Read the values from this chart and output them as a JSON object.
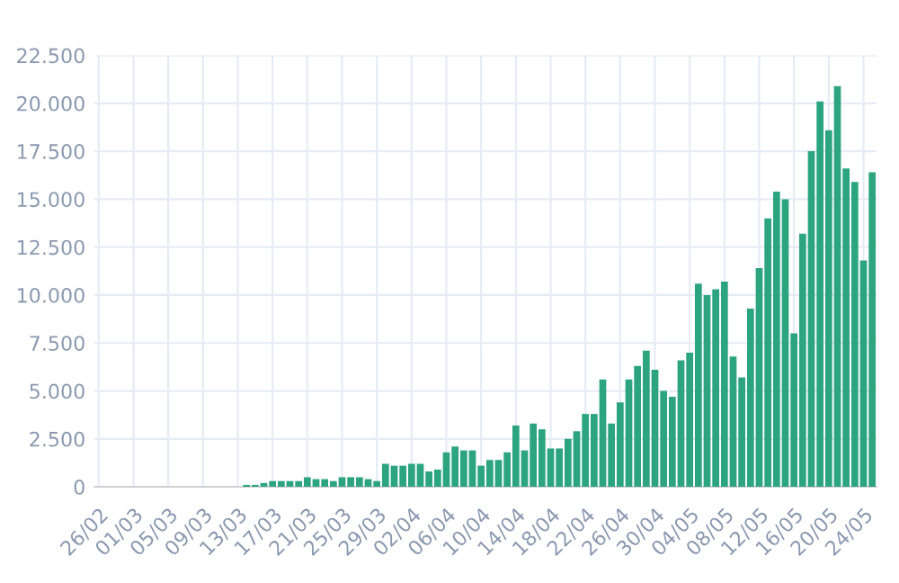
{
  "chart_data": {
    "type": "bar",
    "categories": [
      "26/02",
      null,
      null,
      null,
      "01/03",
      null,
      null,
      null,
      "05/03",
      null,
      null,
      null,
      "09/03",
      null,
      null,
      null,
      "13/03",
      null,
      null,
      null,
      "17/03",
      null,
      null,
      null,
      "21/03",
      null,
      null,
      null,
      "25/03",
      null,
      null,
      null,
      "29/03",
      null,
      null,
      null,
      "02/04",
      null,
      null,
      null,
      "06/04",
      null,
      null,
      null,
      "10/04",
      null,
      null,
      null,
      "14/04",
      null,
      null,
      null,
      "18/04",
      null,
      null,
      null,
      "22/04",
      null,
      null,
      null,
      "26/04",
      null,
      null,
      null,
      "30/04",
      null,
      null,
      null,
      "04/05",
      null,
      null,
      null,
      "08/05",
      null,
      null,
      null,
      "12/05",
      null,
      null,
      null,
      "16/05",
      null,
      null,
      null,
      "20/05",
      null,
      null,
      null,
      "24/05",
      null
    ],
    "values": [
      0,
      0,
      0,
      0,
      0,
      0,
      0,
      0,
      0,
      0,
      0,
      0,
      0,
      0,
      0,
      0,
      0,
      100,
      100,
      200,
      300,
      300,
      300,
      300,
      500,
      400,
      400,
      300,
      500,
      500,
      500,
      400,
      300,
      1200,
      1100,
      1100,
      1200,
      1200,
      800,
      900,
      1800,
      2100,
      1900,
      1900,
      1100,
      1400,
      1400,
      1800,
      3200,
      1900,
      3300,
      3000,
      2000,
      2000,
      2500,
      2900,
      3800,
      3800,
      5600,
      3300,
      4400,
      5600,
      6300,
      7100,
      6100,
      5000,
      4700,
      6600,
      7000,
      10600,
      10000,
      10300,
      10700,
      6800,
      5700,
      9300,
      11400,
      14000,
      15400,
      15000,
      8000,
      13200,
      17500,
      20100,
      18600,
      20900,
      16600,
      15900,
      11800,
      16400
    ],
    "color": "#2ca57f",
    "ylim": [
      0,
      22500
    ],
    "yticks": [
      {
        "value": 0,
        "label": "0"
      },
      {
        "value": 2500,
        "label": "2.500"
      },
      {
        "value": 5000,
        "label": "5.000"
      },
      {
        "value": 7500,
        "label": "7.500"
      },
      {
        "value": 10000,
        "label": "10.000"
      },
      {
        "value": 12500,
        "label": "12.500"
      },
      {
        "value": 15000,
        "label": "15.000"
      },
      {
        "value": 17500,
        "label": "17.500"
      },
      {
        "value": 20000,
        "label": "20.000"
      },
      {
        "value": 22500,
        "label": "22.500"
      }
    ],
    "grid": true
  }
}
